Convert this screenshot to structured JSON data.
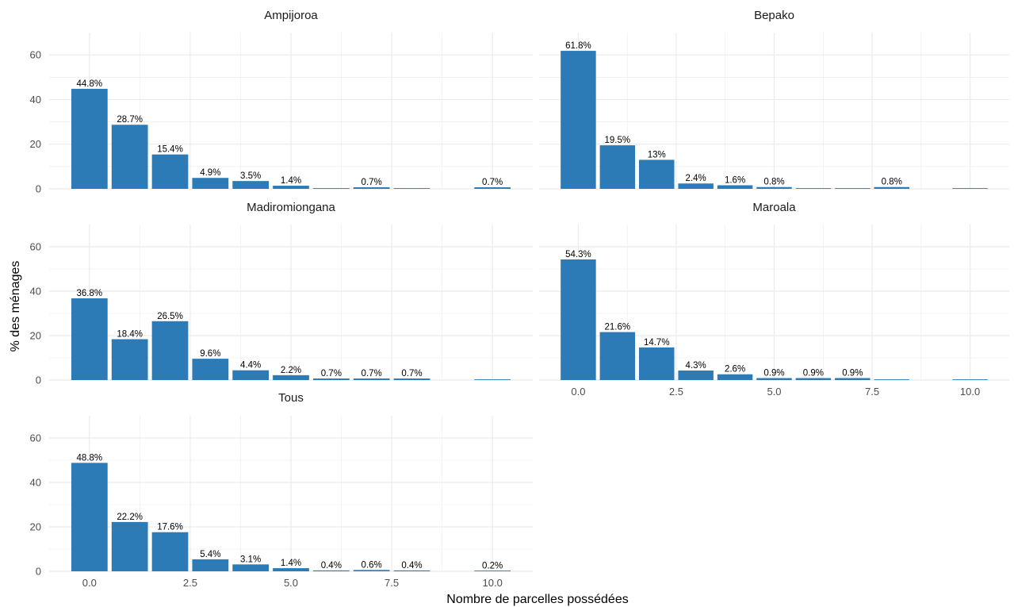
{
  "chart_data": {
    "type": "bar",
    "xlabel": "Nombre de parcelles possédées",
    "ylabel": "% des ménages",
    "ylim": [
      0,
      70
    ],
    "xlim": [
      -1,
      11
    ],
    "x_ticks": [
      0,
      2.5,
      5,
      7.5,
      10
    ],
    "x_tick_labels": [
      "0.0",
      "2.5",
      "5.0",
      "7.5",
      "10.0"
    ],
    "y_ticks": [
      0,
      20,
      40,
      60
    ],
    "y_tick_labels": [
      "0",
      "20",
      "40",
      "60"
    ],
    "grid": true,
    "colors": {
      "bar": "#2c7bb6",
      "grid": "#ebebeb"
    },
    "panels": [
      {
        "title": "Ampijoroa",
        "x": [
          0,
          1,
          2,
          3,
          4,
          5,
          6,
          7,
          8,
          10
        ],
        "values": [
          44.8,
          28.7,
          15.4,
          4.9,
          3.5,
          1.4,
          0,
          0.7,
          0,
          0.7
        ],
        "labels": [
          "44.8%",
          "28.7%",
          "15.4%",
          "4.9%",
          "3.5%",
          "1.4%",
          "",
          "0.7%",
          "",
          "0.7%"
        ]
      },
      {
        "title": "Bepako",
        "x": [
          0,
          1,
          2,
          3,
          4,
          5,
          6,
          7,
          8,
          10
        ],
        "values": [
          61.8,
          19.5,
          13,
          2.4,
          1.6,
          0.8,
          0,
          0,
          0.8,
          0
        ],
        "labels": [
          "61.8%",
          "19.5%",
          "13%",
          "2.4%",
          "1.6%",
          "0.8%",
          "",
          "",
          "0.8%",
          ""
        ]
      },
      {
        "title": "Madiromiongana",
        "x": [
          0,
          1,
          2,
          3,
          4,
          5,
          6,
          7,
          8,
          10
        ],
        "values": [
          36.8,
          18.4,
          26.5,
          9.6,
          4.4,
          2.2,
          0.7,
          0.7,
          0.7,
          0
        ],
        "labels": [
          "36.8%",
          "18.4%",
          "26.5%",
          "9.6%",
          "4.4%",
          "2.2%",
          "0.7%",
          "0.7%",
          "0.7%",
          ""
        ]
      },
      {
        "title": "Maroala",
        "x": [
          0,
          1,
          2,
          3,
          4,
          5,
          6,
          7,
          8,
          10
        ],
        "values": [
          54.3,
          21.6,
          14.7,
          4.3,
          2.6,
          0.9,
          0.9,
          0.9,
          0,
          0
        ],
        "labels": [
          "54.3%",
          "21.6%",
          "14.7%",
          "4.3%",
          "2.6%",
          "0.9%",
          "0.9%",
          "0.9%",
          "",
          ""
        ]
      },
      {
        "title": "Tous",
        "x": [
          0,
          1,
          2,
          3,
          4,
          5,
          6,
          7,
          8,
          10
        ],
        "values": [
          48.8,
          22.2,
          17.6,
          5.4,
          3.1,
          1.4,
          0.4,
          0.6,
          0.4,
          0.2
        ],
        "labels": [
          "48.8%",
          "22.2%",
          "17.6%",
          "5.4%",
          "3.1%",
          "1.4%",
          "0.4%",
          "0.6%",
          "0.4%",
          "0.2%"
        ]
      }
    ]
  }
}
